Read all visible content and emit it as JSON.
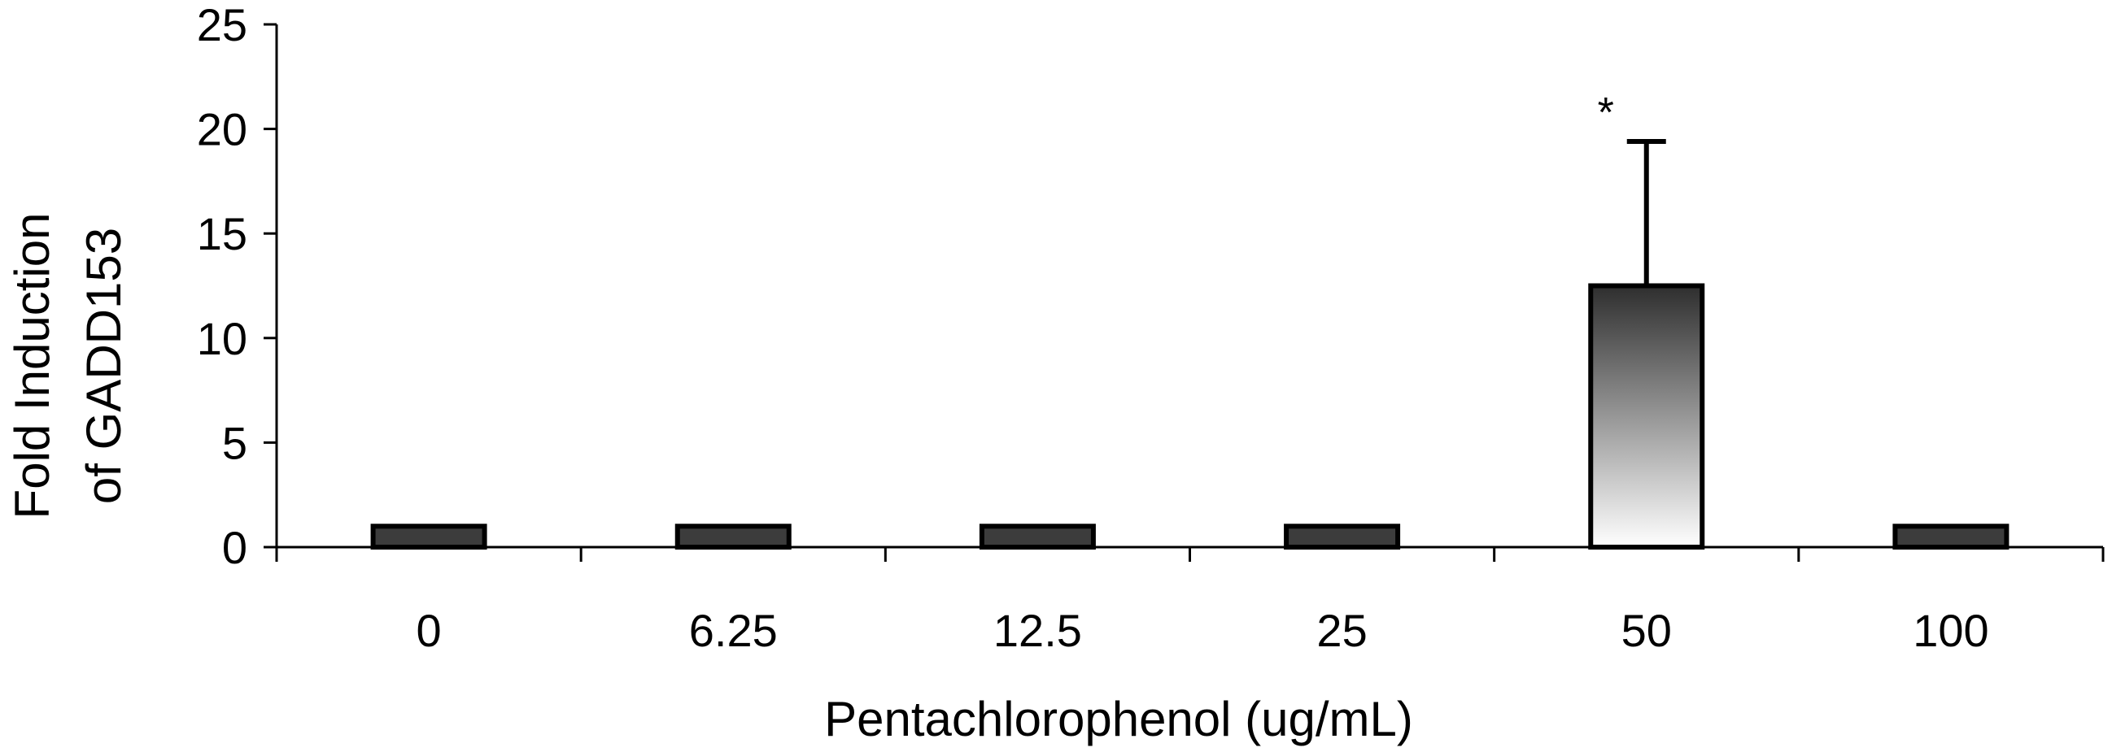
{
  "chart_data": {
    "type": "bar",
    "categories": [
      "0",
      "6.25",
      "12.5",
      "25",
      "50",
      "100"
    ],
    "values": [
      1,
      1,
      1,
      1,
      12.5,
      1
    ],
    "error_bars": [
      null,
      null,
      null,
      null,
      6.9,
      null
    ],
    "annotations": [
      {
        "category": "50",
        "text": "*"
      }
    ],
    "xlabel": "Pentachlorophenol (ug/mL)",
    "ylabel_lines": [
      "Fold Induction",
      "of  GADD153"
    ],
    "ylim": [
      0,
      25
    ],
    "yticks": [
      "0",
      "5",
      "10",
      "15",
      "20",
      "25"
    ],
    "grid": false,
    "colors": {
      "bar_dark": "#3c3c3c",
      "bar_gradient_top": "#2e2e2e",
      "bar_gradient_bottom": "#ffffff",
      "stroke": "#000000"
    }
  }
}
